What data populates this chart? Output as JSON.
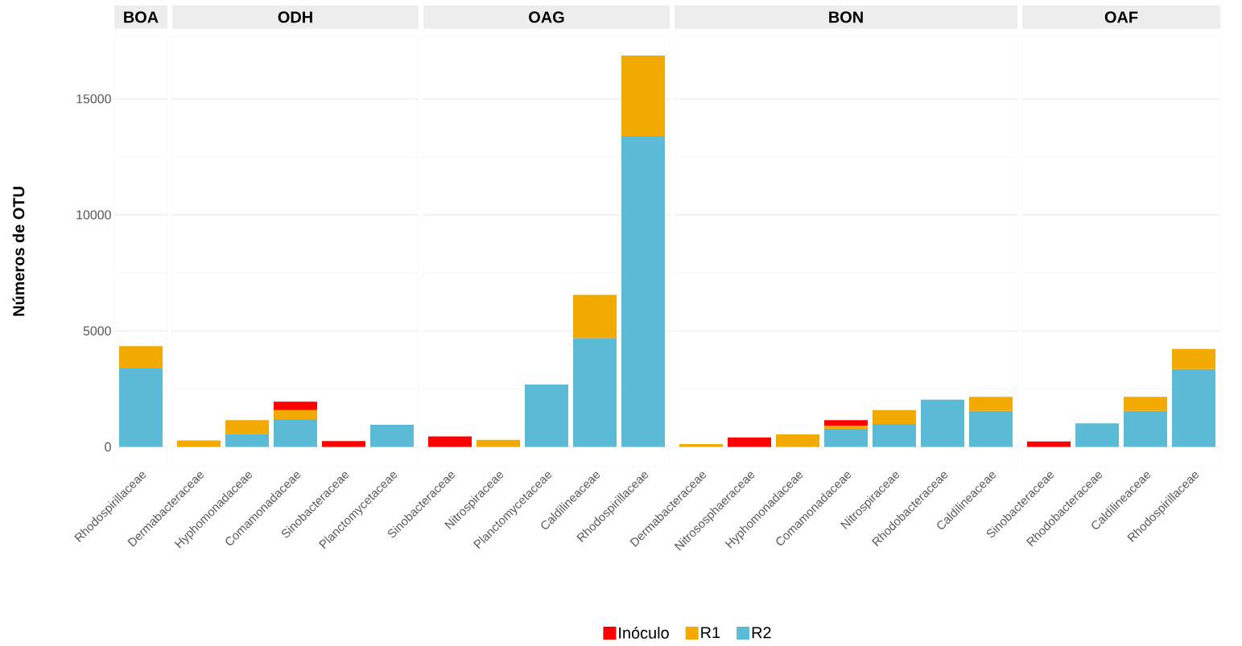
{
  "chart_data": [
    {
      "type": "bar",
      "title": "BOA",
      "ylabel": "Números de OTU",
      "categories": [
        "Rhodospirillaceae"
      ],
      "stacked": true,
      "ylim": [
        -850,
        17700
      ],
      "yticks": [
        0,
        5000,
        10000,
        15000
      ],
      "grid": "y",
      "legend": "bottom",
      "series": [
        {
          "name": "R2",
          "color": "#5bbad5",
          "values": [
            3380
          ]
        },
        {
          "name": "R1",
          "color": "#f2a900",
          "values": [
            960
          ]
        },
        {
          "name": "Inóculo",
          "color": "#ff0000",
          "values": [
            null
          ]
        }
      ]
    },
    {
      "type": "bar",
      "title": "ODH",
      "categories": [
        "Dermabacteraceae",
        "Hyphomonadaceae",
        "Comamonadaceae",
        "Sinobacteraceae",
        "Planctomycetaceae"
      ],
      "stacked": true,
      "ylim": [
        -850,
        17700
      ],
      "yticks": [
        0,
        5000,
        10000,
        15000
      ],
      "grid": "y",
      "tick_labels": "x",
      "series": [
        {
          "color": "#5bbad5",
          "values": [
            null,
            560,
            1200,
            null,
            950
          ]
        },
        {
          "color": "#f2a900",
          "values": [
            280,
            590,
            390,
            null,
            null
          ]
        },
        {
          "color": "#ff0000",
          "values": [
            null,
            null,
            360,
            250,
            null
          ]
        }
      ]
    },
    {
      "type": "bar",
      "title": "OAG",
      "categories": [
        "Sinobacteraceae",
        "Nitrospiraceae",
        "Planctomycetaceae",
        "Caldilineaceae",
        "Rhodospirillaceae"
      ],
      "stacked": true,
      "ylim": [
        -850,
        17700
      ],
      "yticks": [
        0,
        5000,
        10000,
        15000
      ],
      "grid": "y",
      "tick_labels": "x",
      "series": [
        {
          "color": "#5bbad5",
          "values": [
            null,
            null,
            2690,
            4690,
            13400
          ]
        },
        {
          "color": "#f2a900",
          "values": [
            null,
            300,
            null,
            1860,
            3470
          ]
        },
        {
          "color": "#ff0000",
          "values": [
            450,
            null,
            null,
            null,
            null
          ]
        }
      ]
    },
    {
      "type": "bar",
      "title": "BON",
      "categories": [
        "Dermabacteraceae",
        "Nitrososphaeraceae",
        "Hyphomonadaceae",
        "Comamonadaceae",
        "Nitrospiraceae",
        "Rhodobacteraceae",
        "Caldilineaceae"
      ],
      "stacked": true,
      "ylim": [
        -850,
        17700
      ],
      "yticks": [
        0,
        5000,
        10000,
        15000
      ],
      "grid": "y",
      "tick_labels": "x",
      "series": [
        {
          "color": "#5bbad5",
          "values": [
            null,
            null,
            null,
            780,
            990,
            2040,
            1550
          ]
        },
        {
          "color": "#f2a900",
          "values": [
            120,
            null,
            540,
            140,
            600,
            null,
            610
          ]
        },
        {
          "color": "#ff0000",
          "values": [
            null,
            410,
            null,
            230,
            null,
            null,
            null
          ]
        }
      ]
    },
    {
      "type": "bar",
      "title": "OAF",
      "categories": [
        "Sinobacteraceae",
        "Rhodobacteraceae",
        "Caldilineaceae",
        "Rhodospirillaceae"
      ],
      "stacked": true,
      "ylim": [
        -850,
        17700
      ],
      "yticks": [
        0,
        5000,
        10000,
        15000
      ],
      "grid": "y",
      "tick_labels": "x",
      "series": [
        {
          "color": "#5bbad5",
          "values": [
            null,
            1010,
            1550,
            3350
          ]
        },
        {
          "color": "#f2a900",
          "values": [
            null,
            null,
            610,
            870
          ]
        },
        {
          "color": "#ff0000",
          "values": [
            230,
            null,
            null,
            null
          ]
        }
      ]
    }
  ]
}
